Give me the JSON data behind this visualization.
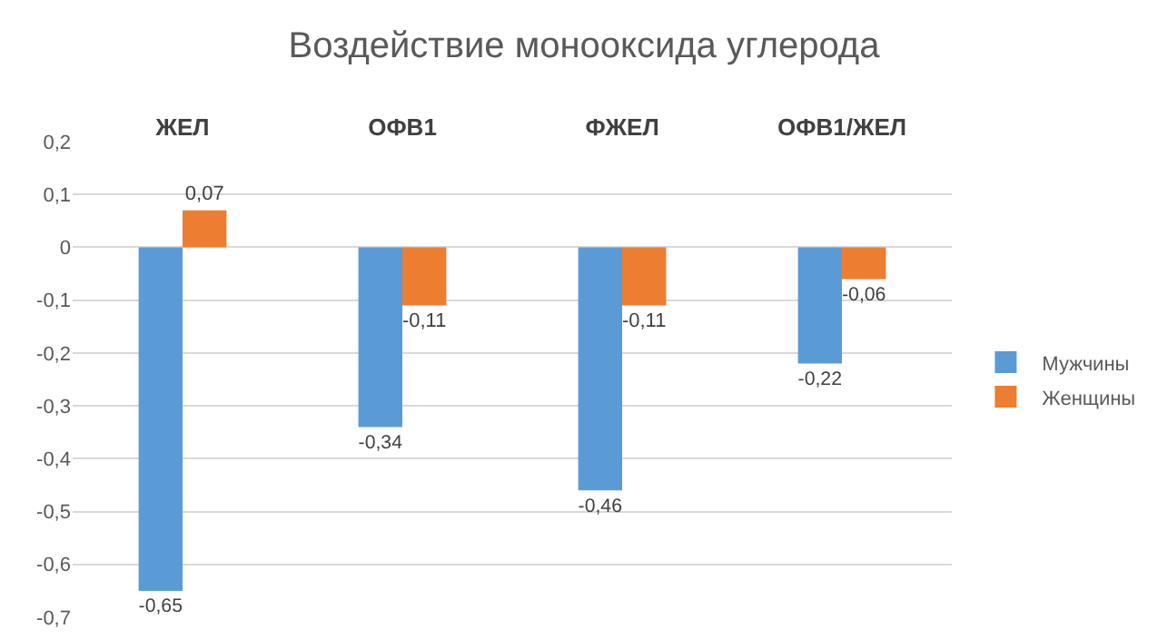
{
  "chart_data": {
    "type": "bar",
    "title": "Воздействие монооксида углерода",
    "categories": [
      "ЖЕЛ",
      "ОФВ1",
      "ФЖЕЛ",
      "ОФВ1/ЖЕЛ"
    ],
    "series": [
      {
        "name": "Мужчины",
        "color": "#5b9bd5",
        "values": [
          -0.65,
          -0.34,
          -0.46,
          -0.22
        ],
        "value_labels": [
          "-0,65",
          "-0,34",
          "-0,46",
          "-0,22"
        ]
      },
      {
        "name": "Женщины",
        "color": "#ed7d31",
        "values": [
          0.07,
          -0.11,
          -0.11,
          -0.06
        ],
        "value_labels": [
          "0,07",
          "-0,11",
          "-0,11",
          "-0,06"
        ]
      }
    ],
    "ylim": [
      -0.7,
      0.2
    ],
    "yticks": [
      {
        "value": -0.7,
        "label": "-0,7"
      },
      {
        "value": -0.6,
        "label": "-0,6"
      },
      {
        "value": -0.5,
        "label": "-0,5"
      },
      {
        "value": -0.4,
        "label": "-0,4"
      },
      {
        "value": -0.3,
        "label": "-0,3"
      },
      {
        "value": -0.2,
        "label": "-0,2"
      },
      {
        "value": -0.1,
        "label": "-0,1"
      },
      0,
      {
        "value": 0.1,
        "label": "0,1"
      },
      {
        "value": 0.2,
        "label": "0,2"
      }
    ],
    "grid": "y",
    "legend": "right"
  }
}
